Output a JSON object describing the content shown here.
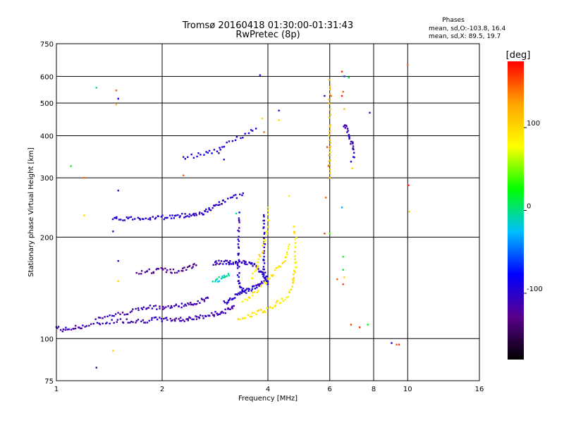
{
  "chart_data": {
    "type": "scatter",
    "title": "Tromsø 20160418 01:30:00-01:31:43",
    "subtitle": "RwPretec (8p)",
    "xlabel": "Frequency [MHz]",
    "ylabel": "Stationary phase Virtual Height [km]",
    "x_scale": "log",
    "y_scale": "log",
    "xlim": [
      1,
      16
    ],
    "ylim": [
      75,
      750
    ],
    "x_ticks": [
      1,
      2,
      4,
      6,
      8,
      10,
      16
    ],
    "y_ticks": [
      75,
      100,
      200,
      300,
      400,
      500,
      600,
      750
    ],
    "grid": true,
    "stats": {
      "heading": "Phases",
      "line_o": "mean, sd,O:-103.8, 16.4",
      "line_x": "mean, sd,X:  89.5, 19.7"
    },
    "colorbar": {
      "label": "[deg]",
      "range": [
        -180,
        180
      ],
      "ticks": [
        100,
        0,
        -100
      ],
      "colors": [
        "#000000",
        "#5a008c",
        "#0000ff",
        "#00bfff",
        "#00ff00",
        "#ffff00",
        "#ffa500",
        "#ff0000"
      ]
    },
    "o_trace_color": "#2a1fd0",
    "x_trace_color": "#e0e81a",
    "traces": [
      {
        "name": "",
        "phase": -110,
        "points": [
          [
            1.0,
            108
          ],
          [
            1.05,
            106
          ],
          [
            1.1,
            107
          ],
          [
            1.15,
            108
          ],
          [
            1.2,
            109
          ],
          [
            1.3,
            110
          ],
          [
            1.4,
            112
          ],
          [
            1.5,
            113
          ],
          [
            1.6,
            113
          ],
          [
            1.7,
            113
          ],
          [
            1.8,
            113
          ],
          [
            1.9,
            114
          ],
          [
            2.0,
            114
          ],
          [
            2.1,
            114
          ],
          [
            2.2,
            114
          ],
          [
            2.3,
            114
          ],
          [
            2.4,
            115
          ],
          [
            2.5,
            115
          ],
          [
            2.6,
            116
          ],
          [
            2.7,
            117
          ],
          [
            2.8,
            118
          ],
          [
            2.9,
            119
          ],
          [
            3.0,
            120
          ],
          [
            3.1,
            122
          ],
          [
            3.2,
            125
          ]
        ]
      },
      {
        "name": "",
        "phase": -110,
        "points": [
          [
            1.3,
            115
          ],
          [
            1.4,
            117
          ],
          [
            1.5,
            118
          ],
          [
            1.6,
            120
          ],
          [
            1.7,
            122
          ],
          [
            1.8,
            123
          ],
          [
            1.9,
            124
          ],
          [
            2.0,
            124
          ],
          [
            2.1,
            124
          ],
          [
            2.2,
            125
          ],
          [
            2.3,
            126
          ],
          [
            2.4,
            126
          ],
          [
            2.5,
            128
          ],
          [
            2.6,
            130
          ],
          [
            2.7,
            132
          ]
        ]
      },
      {
        "name": "",
        "phase": -100,
        "points": [
          [
            1.45,
            225
          ],
          [
            1.5,
            227
          ],
          [
            1.6,
            227
          ],
          [
            1.7,
            228
          ],
          [
            1.8,
            228
          ],
          [
            1.9,
            229
          ],
          [
            2.0,
            229
          ],
          [
            2.1,
            230
          ],
          [
            2.2,
            230
          ],
          [
            2.3,
            232
          ],
          [
            2.4,
            233
          ],
          [
            2.5,
            234
          ],
          [
            2.6,
            236
          ],
          [
            2.7,
            240
          ],
          [
            2.8,
            245
          ],
          [
            2.9,
            250
          ],
          [
            3.0,
            255
          ],
          [
            3.2,
            262
          ],
          [
            3.4,
            270
          ]
        ]
      },
      {
        "name": "",
        "phase": -125,
        "points": [
          [
            1.7,
            158
          ],
          [
            1.8,
            158
          ],
          [
            1.9,
            159
          ],
          [
            2.0,
            160
          ],
          [
            2.1,
            159
          ],
          [
            2.2,
            158
          ],
          [
            2.3,
            160
          ],
          [
            2.4,
            163
          ],
          [
            2.5,
            165
          ]
        ]
      },
      {
        "name": "",
        "phase": -105,
        "points": [
          [
            2.8,
            168
          ],
          [
            2.9,
            168
          ],
          [
            3.0,
            168
          ],
          [
            3.1,
            168
          ],
          [
            3.2,
            168
          ],
          [
            3.3,
            168
          ],
          [
            3.4,
            168
          ],
          [
            3.5,
            168
          ],
          [
            3.6,
            166
          ],
          [
            3.7,
            164
          ],
          [
            3.8,
            160
          ],
          [
            3.9,
            155
          ],
          [
            4.0,
            150
          ]
        ]
      },
      {
        "name": "",
        "phase": -100,
        "points": [
          [
            3.3,
            235
          ],
          [
            3.3,
            215
          ],
          [
            3.3,
            195
          ],
          [
            3.3,
            178
          ],
          [
            3.3,
            162
          ],
          [
            3.3,
            150
          ],
          [
            3.35,
            142
          ],
          [
            3.4,
            138
          ]
        ]
      },
      {
        "name": "",
        "phase": -100,
        "points": [
          [
            3.9,
            235
          ],
          [
            3.9,
            215
          ],
          [
            3.9,
            198
          ],
          [
            3.9,
            182
          ],
          [
            3.9,
            168
          ],
          [
            3.9,
            158
          ],
          [
            3.95,
            150
          ],
          [
            4.0,
            145
          ]
        ]
      },
      {
        "name": "",
        "phase": -100,
        "points": [
          [
            3.0,
            128
          ],
          [
            3.1,
            130
          ],
          [
            3.2,
            133
          ],
          [
            3.3,
            135
          ],
          [
            3.4,
            137
          ],
          [
            3.5,
            139
          ],
          [
            3.6,
            141
          ],
          [
            3.7,
            143
          ],
          [
            3.8,
            145
          ],
          [
            3.9,
            148
          ]
        ]
      },
      {
        "name": "",
        "phase": -95,
        "points": [
          [
            2.3,
            345
          ],
          [
            2.5,
            350
          ],
          [
            2.7,
            355
          ],
          [
            2.9,
            365
          ],
          [
            3.1,
            380
          ],
          [
            3.4,
            400
          ],
          [
            3.7,
            420
          ]
        ]
      },
      {
        "name": "",
        "phase": 90,
        "points": [
          [
            3.3,
            115
          ],
          [
            3.5,
            117
          ],
          [
            3.7,
            119
          ],
          [
            3.9,
            121
          ],
          [
            4.0,
            123
          ],
          [
            4.2,
            126
          ],
          [
            4.4,
            130
          ],
          [
            4.6,
            136
          ],
          [
            4.7,
            145
          ],
          [
            4.75,
            155
          ],
          [
            4.8,
            165
          ],
          [
            4.8,
            180
          ],
          [
            4.8,
            200
          ],
          [
            4.75,
            215
          ]
        ]
      },
      {
        "name": "",
        "phase": 90,
        "points": [
          [
            3.4,
            130
          ],
          [
            3.6,
            135
          ],
          [
            3.8,
            142
          ],
          [
            4.0,
            150
          ],
          [
            4.2,
            158
          ],
          [
            4.4,
            166
          ],
          [
            4.5,
            175
          ],
          [
            4.6,
            190
          ]
        ]
      },
      {
        "name": "",
        "phase": 90,
        "points": [
          [
            3.6,
            150
          ],
          [
            3.7,
            160
          ],
          [
            3.8,
            175
          ],
          [
            3.9,
            190
          ],
          [
            4.0,
            210
          ],
          [
            4.0,
            240
          ]
        ]
      },
      {
        "name": "",
        "phase": -10,
        "points": [
          [
            2.8,
            148
          ],
          [
            2.9,
            150
          ],
          [
            3.0,
            152
          ],
          [
            3.1,
            154
          ]
        ]
      },
      {
        "name": "",
        "phase": -110,
        "points": [
          [
            6.6,
            430
          ],
          [
            6.7,
            420
          ],
          [
            6.8,
            400
          ],
          [
            6.9,
            385
          ],
          [
            7.0,
            370
          ],
          [
            7.05,
            345
          ]
        ]
      },
      {
        "name": "",
        "phase": 110,
        "points": [
          [
            6.0,
            580
          ],
          [
            6.0,
            500
          ],
          [
            6.0,
            420
          ],
          [
            6.0,
            380
          ],
          [
            6.0,
            340
          ],
          [
            6.0,
            300
          ]
        ]
      }
    ],
    "scattered_points": [
      {
        "x": 1.3,
        "y": 555,
        "phase": -10
      },
      {
        "x": 1.48,
        "y": 545,
        "phase": 150
      },
      {
        "x": 1.48,
        "y": 495,
        "phase": 120
      },
      {
        "x": 1.5,
        "y": 515,
        "phase": -80
      },
      {
        "x": 1.2,
        "y": 300,
        "phase": 150
      },
      {
        "x": 1.1,
        "y": 325,
        "phase": 20
      },
      {
        "x": 1.5,
        "y": 275,
        "phase": -110
      },
      {
        "x": 1.2,
        "y": 232,
        "phase": 100
      },
      {
        "x": 1.45,
        "y": 208,
        "phase": -120
      },
      {
        "x": 1.5,
        "y": 170,
        "phase": -100
      },
      {
        "x": 1.5,
        "y": 148,
        "phase": 100
      },
      {
        "x": 1.45,
        "y": 92,
        "phase": 100
      },
      {
        "x": 1.3,
        "y": 82,
        "phase": -120
      },
      {
        "x": 2.3,
        "y": 305,
        "phase": 150
      },
      {
        "x": 3.8,
        "y": 605,
        "phase": -100
      },
      {
        "x": 3.85,
        "y": 450,
        "phase": 100
      },
      {
        "x": 3.9,
        "y": 410,
        "phase": 150
      },
      {
        "x": 4.3,
        "y": 475,
        "phase": -110
      },
      {
        "x": 4.3,
        "y": 445,
        "phase": 100
      },
      {
        "x": 4.6,
        "y": 265,
        "phase": 90
      },
      {
        "x": 5.8,
        "y": 525,
        "phase": -110
      },
      {
        "x": 6.05,
        "y": 525,
        "phase": 150
      },
      {
        "x": 5.9,
        "y": 370,
        "phase": 160
      },
      {
        "x": 5.95,
        "y": 325,
        "phase": 150
      },
      {
        "x": 5.85,
        "y": 262,
        "phase": 150
      },
      {
        "x": 5.8,
        "y": 205,
        "phase": 160
      },
      {
        "x": 6.0,
        "y": 205,
        "phase": 40
      },
      {
        "x": 6.3,
        "y": 150,
        "phase": 150
      },
      {
        "x": 6.5,
        "y": 620,
        "phase": 170
      },
      {
        "x": 6.6,
        "y": 600,
        "phase": -60
      },
      {
        "x": 6.8,
        "y": 595,
        "phase": 10
      },
      {
        "x": 6.5,
        "y": 525,
        "phase": 170
      },
      {
        "x": 6.55,
        "y": 540,
        "phase": 150
      },
      {
        "x": 6.6,
        "y": 480,
        "phase": 110
      },
      {
        "x": 6.5,
        "y": 245,
        "phase": -30
      },
      {
        "x": 6.55,
        "y": 175,
        "phase": 30
      },
      {
        "x": 6.55,
        "y": 160,
        "phase": 20
      },
      {
        "x": 6.6,
        "y": 152,
        "phase": 100
      },
      {
        "x": 6.55,
        "y": 145,
        "phase": 160
      },
      {
        "x": 6.9,
        "y": 335,
        "phase": -100
      },
      {
        "x": 6.95,
        "y": 320,
        "phase": 100
      },
      {
        "x": 6.9,
        "y": 110,
        "phase": 160
      },
      {
        "x": 7.3,
        "y": 108,
        "phase": 170
      },
      {
        "x": 7.7,
        "y": 110,
        "phase": 20
      },
      {
        "x": 7.8,
        "y": 468,
        "phase": -110
      },
      {
        "x": 9.0,
        "y": 97,
        "phase": -100
      },
      {
        "x": 9.3,
        "y": 96,
        "phase": 150
      },
      {
        "x": 9.45,
        "y": 96,
        "phase": 160
      },
      {
        "x": 10.0,
        "y": 650,
        "phase": 150
      },
      {
        "x": 10.05,
        "y": 285,
        "phase": 170
      },
      {
        "x": 10.1,
        "y": 238,
        "phase": 100
      },
      {
        "x": 2.9,
        "y": 355,
        "phase": -110
      },
      {
        "x": 3.0,
        "y": 340,
        "phase": -110
      },
      {
        "x": 3.25,
        "y": 235,
        "phase": -10
      },
      {
        "x": 4.0,
        "y": 245,
        "phase": 60
      }
    ]
  }
}
